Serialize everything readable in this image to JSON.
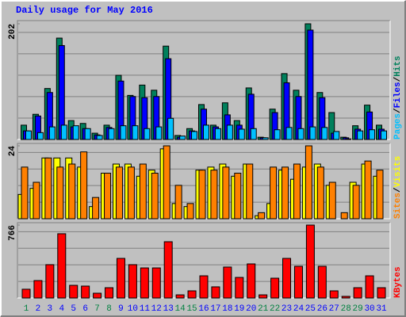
{
  "title": "Daily usage for May 2016",
  "legend_separator": "/",
  "chart_data": [
    {
      "type": "grouped-bar",
      "ylim": [
        0,
        202
      ],
      "yticks": [
        202
      ],
      "series": [
        {
          "name": "Pages",
          "color": "#00c0ff",
          "values": [
            15,
            12,
            22,
            25,
            24,
            19,
            7,
            19,
            24,
            24,
            19,
            22,
            37,
            6,
            14,
            25,
            19,
            25,
            18,
            19,
            3,
            17,
            21,
            19,
            22,
            21,
            14,
            1,
            15,
            17,
            15
          ]
        },
        {
          "name": "Files",
          "color": "#0000ff",
          "values": [
            15,
            41,
            82,
            164,
            22,
            19,
            8,
            21,
            102,
            75,
            73,
            75,
            141,
            4,
            15,
            53,
            22,
            43,
            25,
            79,
            3,
            47,
            99,
            75,
            191,
            73,
            11,
            3,
            18,
            48,
            18
          ]
        },
        {
          "name": "Hits",
          "color": "#00805c",
          "values": [
            25,
            44,
            89,
            177,
            33,
            28,
            11,
            25,
            112,
            77,
            95,
            86,
            163,
            7,
            19,
            61,
            25,
            64,
            33,
            90,
            4,
            53,
            115,
            86,
            202,
            82,
            47,
            4,
            24,
            60,
            25
          ]
        }
      ]
    },
    {
      "type": "grouped-bar",
      "ylim": [
        0,
        24
      ],
      "yticks": [
        24
      ],
      "series": [
        {
          "name": "Sites",
          "color": "#ff8000",
          "values": [
            17,
            12,
            20,
            17,
            18,
            22,
            7,
            15,
            17,
            17,
            18,
            15,
            24,
            11,
            5,
            16,
            16,
            17,
            15,
            18,
            2,
            17,
            17,
            18,
            24,
            17,
            12,
            2,
            11,
            19,
            16
          ]
        },
        {
          "name": "Visits",
          "color": "#ffff00",
          "values": [
            8,
            10,
            20,
            20,
            20,
            17,
            4,
            15,
            18,
            18,
            14,
            16,
            23,
            5,
            4,
            16,
            17,
            18,
            14,
            18,
            1,
            5,
            16,
            13,
            17,
            18,
            11,
            0,
            12,
            18,
            14
          ]
        }
      ]
    },
    {
      "type": "bar",
      "ylim": [
        0,
        766
      ],
      "yticks": [
        766
      ],
      "categories": [
        "1",
        "2",
        "3",
        "4",
        "5",
        "6",
        "7",
        "8",
        "9",
        "10",
        "11",
        "12",
        "13",
        "14",
        "15",
        "16",
        "17",
        "18",
        "19",
        "20",
        "21",
        "22",
        "23",
        "24",
        "25",
        "26",
        "27",
        "28",
        "29",
        "30",
        "31"
      ],
      "category_colors": [
        "#008040",
        "#0000ff",
        "#0000ff",
        "#0000ff",
        "#0000ff",
        "#0000ff",
        "#008040",
        "#008040",
        "#0000ff",
        "#0000ff",
        "#0000ff",
        "#0000ff",
        "#0000ff",
        "#008040",
        "#008040",
        "#0000ff",
        "#0000ff",
        "#0000ff",
        "#0000ff",
        "#0000ff",
        "#008040",
        "#008040",
        "#0000ff",
        "#0000ff",
        "#0000ff",
        "#0000ff",
        "#0000ff",
        "#008040",
        "#008040",
        "#0000ff",
        "#0000ff"
      ],
      "series": [
        {
          "name": "KBytes",
          "color": "#ff0000",
          "values": [
            92,
            183,
            350,
            675,
            133,
            125,
            50,
            108,
            416,
            350,
            316,
            316,
            591,
            33,
            75,
            233,
            117,
            325,
            216,
            358,
            33,
            208,
            416,
            333,
            766,
            333,
            75,
            17,
            108,
            233,
            108
          ]
        }
      ]
    }
  ]
}
